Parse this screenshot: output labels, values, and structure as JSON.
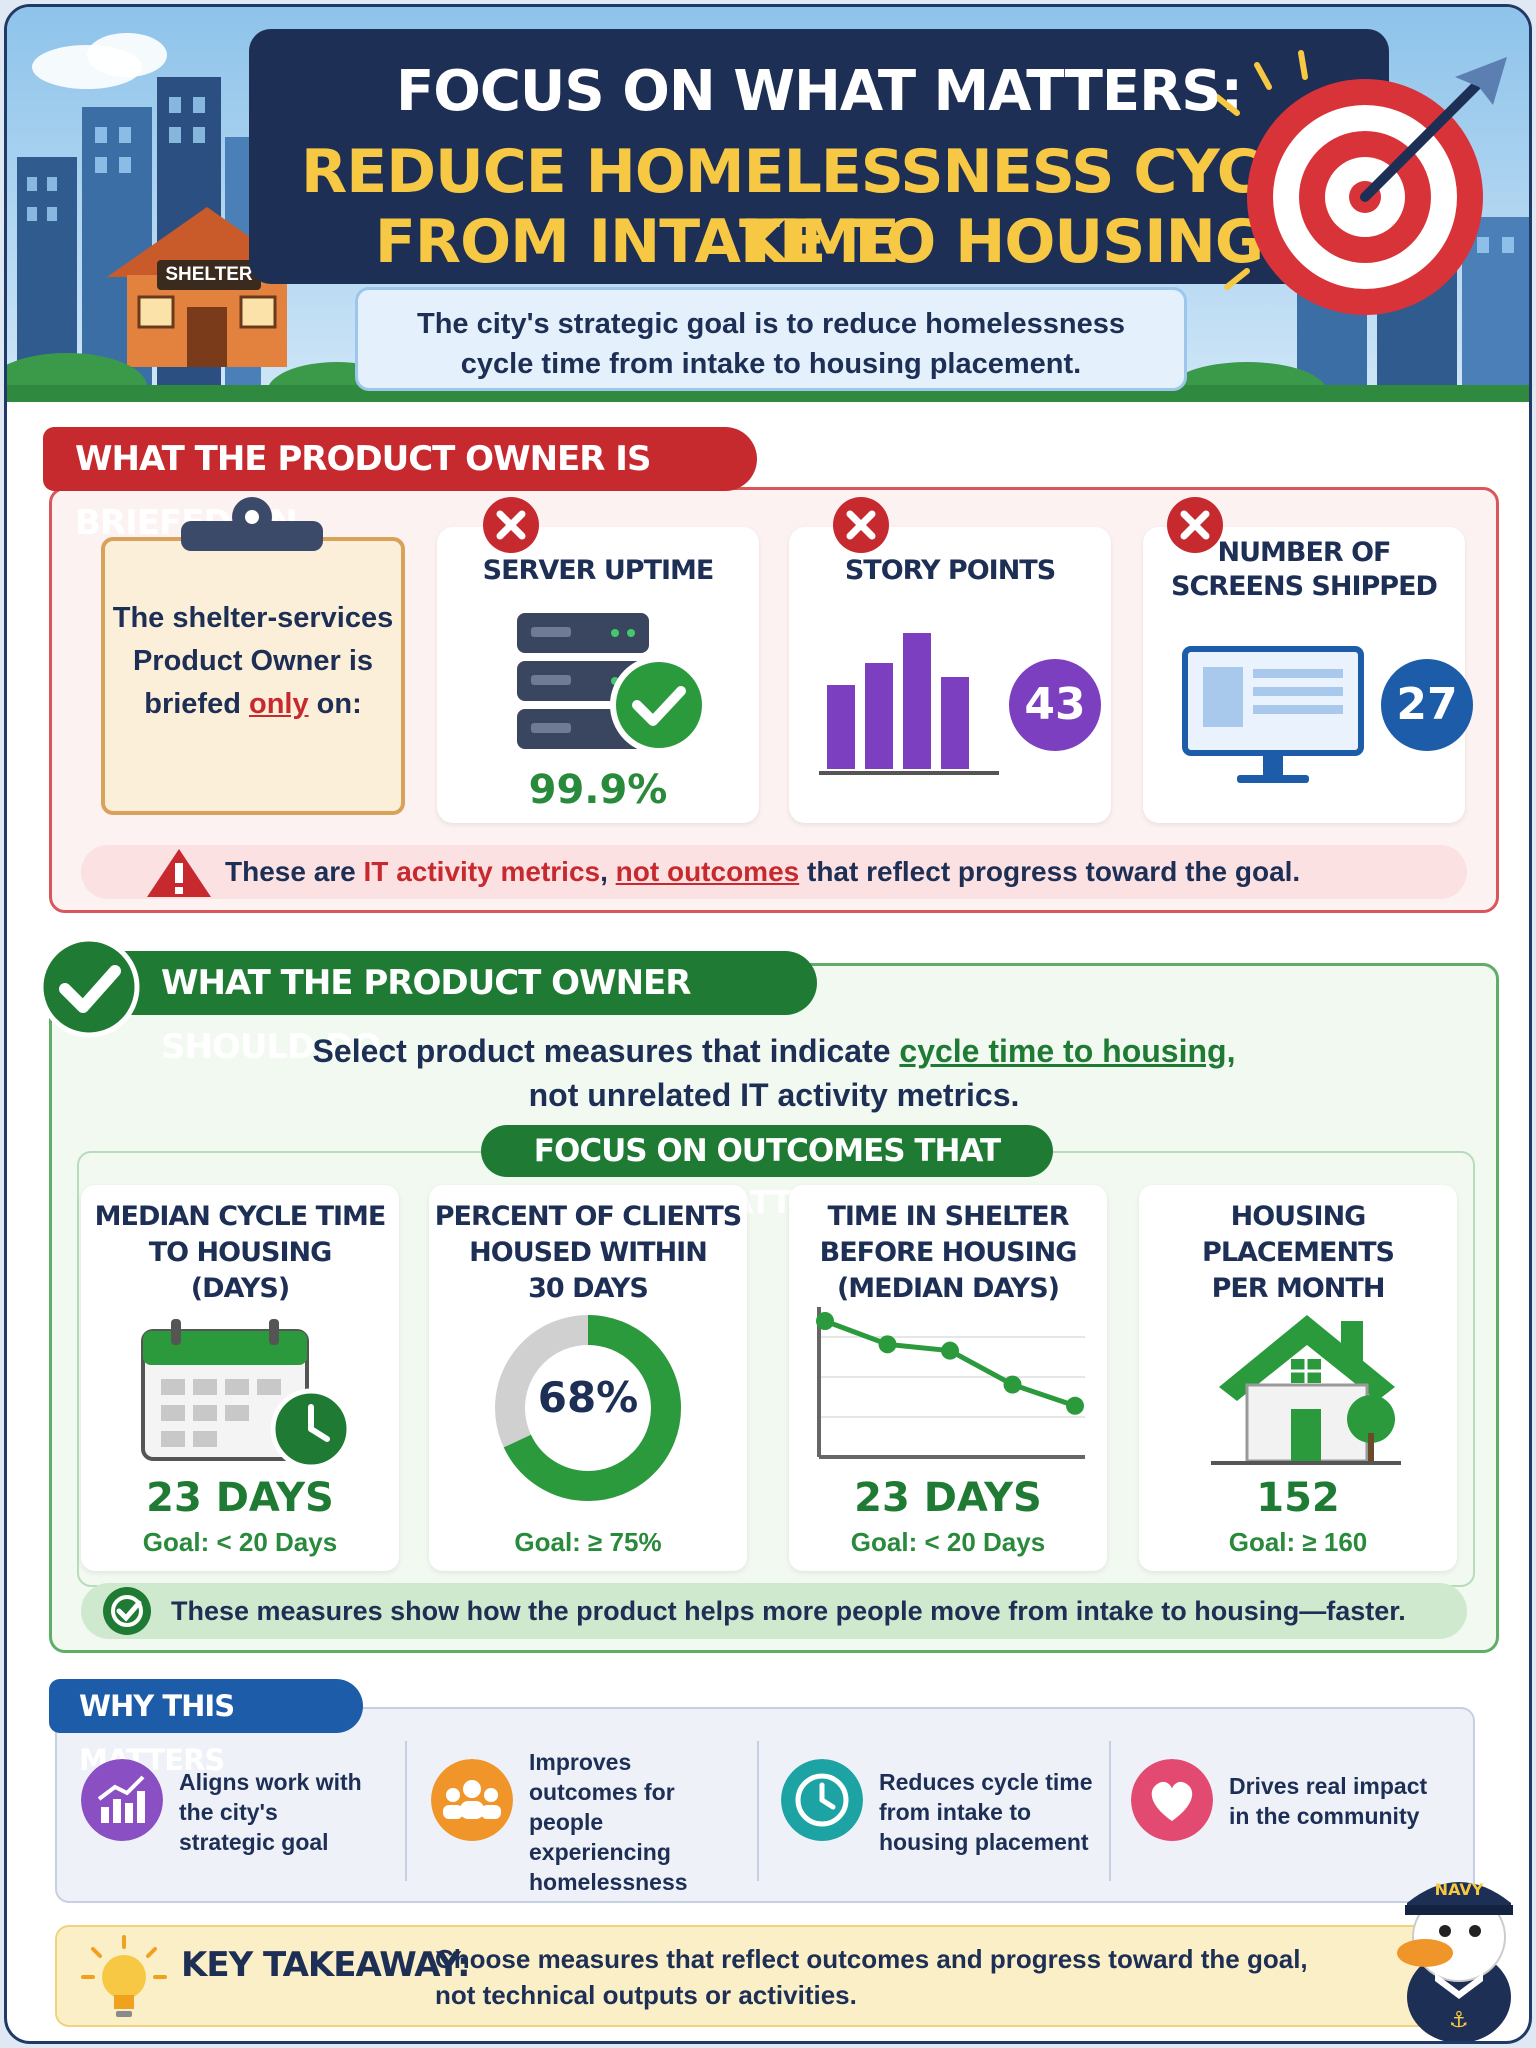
{
  "header": {
    "title_line1": "FOCUS ON WHAT MATTERS:",
    "title_line2": "REDUCE HOMELESSNESS CYCLE TIME",
    "title_line3": "FROM INTAKE TO HOUSING PLACEMENT",
    "subtitle_line1": "The city's strategic goal is to reduce homelessness",
    "subtitle_line2": "cycle time from intake to housing placement.",
    "shelter_sign": "SHELTER"
  },
  "briefed": {
    "tab": "WHAT THE PRODUCT OWNER IS BRIEFED ON",
    "clipboard_line1": "The shelter-services",
    "clipboard_line2": "Product Owner is",
    "clipboard_line3_pre": "briefed ",
    "clipboard_line3_only": "only",
    "clipboard_line3_post": " on:",
    "cards": [
      {
        "title_line1": "SERVER UPTIME",
        "title_line2": "",
        "value": "99.9%"
      },
      {
        "title_line1": "STORY POINTS",
        "title_line2": "",
        "value": "43"
      },
      {
        "title_line1": "NUMBER OF",
        "title_line2": "SCREENS SHIPPED",
        "value": "27"
      }
    ],
    "warning_pre": "These are ",
    "warning_red": "IT activity metrics",
    "warning_mid": ", ",
    "warning_red_u": "not outcomes",
    "warning_post": " that reflect progress toward the goal."
  },
  "should": {
    "tab": "WHAT THE PRODUCT OWNER SHOULD DO",
    "lead_pre": "Select product measures that indicate ",
    "lead_green": "cycle time to housing,",
    "lead_line2": "not unrelated IT activity metrics.",
    "focus_pill": "FOCUS ON OUTCOMES THAT MATTER",
    "outcomes": [
      {
        "title_line1": "MEDIAN CYCLE TIME",
        "title_line2": "TO HOUSING",
        "title_line3": "(DAYS)",
        "value": "23 DAYS",
        "goal": "Goal: < 20 Days"
      },
      {
        "title_line1": "PERCENT OF CLIENTS",
        "title_line2": "HOUSED WITHIN",
        "title_line3": "30 DAYS",
        "value": "68%",
        "goal": "Goal: ≥ 75%"
      },
      {
        "title_line1": "TIME IN SHELTER",
        "title_line2": "BEFORE HOUSING",
        "title_line3": "(MEDIAN DAYS)",
        "value": "23 DAYS",
        "goal": "Goal: < 20 Days"
      },
      {
        "title_line1": "HOUSING PLACEMENTS",
        "title_line2": "PER MONTH",
        "title_line3": "",
        "value": "152",
        "goal": "Goal: ≥ 160"
      }
    ],
    "donut_fraction": 0.68,
    "trend_points": [
      1.0,
      0.78,
      0.72,
      0.4,
      0.2
    ],
    "measures_note": "These measures show how the product helps more people move from intake to housing—faster."
  },
  "why": {
    "tab": "WHY THIS MATTERS",
    "items": [
      {
        "text": "Aligns work with the city's strategic goal",
        "icon": "growth-chart-icon",
        "color": "#8a4fc2"
      },
      {
        "text": "Improves outcomes for people experiencing homelessness",
        "icon": "people-icon",
        "color": "#f0952a"
      },
      {
        "text": "Reduces cycle time from intake to housing placement",
        "icon": "clock-icon",
        "color": "#1ea3a5"
      },
      {
        "text": "Drives real impact in the community",
        "icon": "heart-icon",
        "color": "#e34a72"
      }
    ]
  },
  "takeaway": {
    "label": "KEY TAKEAWAY:",
    "line1": "Choose measures that reflect outcomes and progress toward the goal,",
    "line2": "not technical outputs or activities."
  },
  "mascot": {
    "cap_text": "NAVY"
  },
  "colors": {
    "navy": "#1d2f55",
    "red": "#c62a2f",
    "green": "#1f7a34",
    "gold": "#f7c843",
    "purple": "#7b3fc0",
    "blue": "#1d5ca8"
  }
}
